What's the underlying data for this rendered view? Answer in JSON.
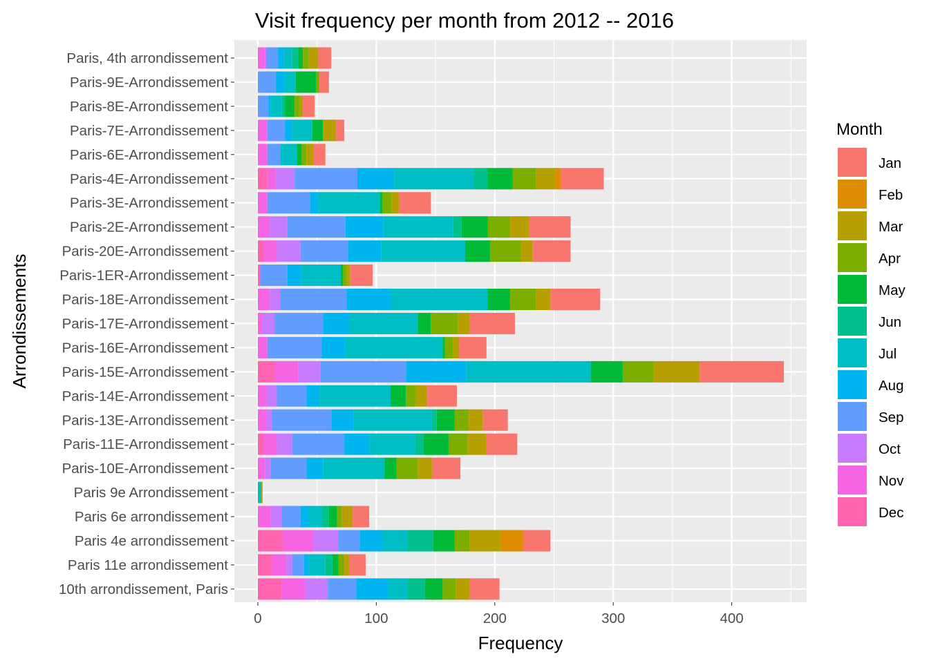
{
  "chart_data": {
    "type": "bar",
    "orientation": "horizontal",
    "stacked": true,
    "title": "Visit frequency per month from 2012 -- 2016",
    "xlabel": "Frequency",
    "ylabel": "Arrondissements",
    "xlim": [
      -20,
      465
    ],
    "xticks": [
      0,
      100,
      200,
      300,
      400
    ],
    "grid": true,
    "legend": {
      "title": "Month",
      "position": "right"
    },
    "categories": [
      "Paris, 4th arrondissement",
      "Paris-9E-Arrondissement",
      "Paris-8E-Arrondissement",
      "Paris-7E-Arrondissement",
      "Paris-6E-Arrondissement",
      "Paris-4E-Arrondissement",
      "Paris-3E-Arrondissement",
      "Paris-2E-Arrondissement",
      "Paris-20E-Arrondissement",
      "Paris-1ER-Arrondissement",
      "Paris-18E-Arrondissement",
      "Paris-17E-Arrondissement",
      "Paris-16E-Arrondissement",
      "Paris-15E-Arrondissement",
      "Paris-14E-Arrondissement",
      "Paris-13E-Arrondissement",
      "Paris-11E-Arrondissement",
      "Paris-10E-Arrondissement",
      "Paris 9e Arrondissement",
      "Paris 6e arrondissement",
      "Paris 4e arrondissement",
      "Paris 11e arrondissement",
      "10th arrondissement, Paris"
    ],
    "stack_order": [
      "Dec",
      "Nov",
      "Oct",
      "Sep",
      "Aug",
      "Jul",
      "Jun",
      "May",
      "Apr",
      "Mar",
      "Feb",
      "Jan"
    ],
    "series": [
      {
        "name": "Jan",
        "color": "#F8766D",
        "values": [
          11,
          8,
          10,
          7,
          10,
          36,
          27,
          35,
          32,
          19,
          42,
          38,
          23,
          71,
          25,
          21,
          26,
          24,
          0,
          14,
          23,
          14,
          25
        ]
      },
      {
        "name": "Feb",
        "color": "#DE8C00",
        "values": [
          0,
          0,
          0,
          0,
          0,
          5,
          0,
          0,
          0,
          0,
          0,
          0,
          0,
          0,
          0,
          0,
          0,
          0,
          0,
          0,
          19,
          0,
          0
        ]
      },
      {
        "name": "Mar",
        "color": "#B79F00",
        "values": [
          8,
          0,
          3,
          11,
          6,
          16,
          6,
          16,
          10,
          3,
          12,
          10,
          5,
          39,
          10,
          12,
          16,
          12,
          1,
          9,
          26,
          4,
          12
        ]
      },
      {
        "name": "Apr",
        "color": "#7CAE00",
        "values": [
          5,
          3,
          4,
          0,
          4,
          20,
          8,
          19,
          26,
          3,
          22,
          23,
          7,
          26,
          8,
          12,
          16,
          18,
          0,
          4,
          13,
          5,
          11
        ]
      },
      {
        "name": "May",
        "color": "#00BA38",
        "values": [
          4,
          17,
          8,
          9,
          4,
          21,
          2,
          22,
          21,
          2,
          19,
          11,
          2,
          27,
          13,
          15,
          21,
          10,
          0,
          7,
          18,
          5,
          15
        ]
      },
      {
        "name": "Jun",
        "color": "#00C08B",
        "values": [
          5,
          0,
          3,
          0,
          0,
          12,
          0,
          7,
          0,
          0,
          0,
          0,
          0,
          0,
          0,
          4,
          7,
          0,
          1,
          6,
          22,
          6,
          15
        ]
      },
      {
        "name": "Jul",
        "color": "#00BFC4",
        "values": [
          7,
          9,
          9,
          17,
          14,
          67,
          52,
          59,
          71,
          33,
          82,
          58,
          82,
          105,
          60,
          66,
          39,
          52,
          2,
          12,
          21,
          14,
          16
        ]
      },
      {
        "name": "Aug",
        "color": "#00B4F0",
        "values": [
          5,
          8,
          2,
          6,
          0,
          31,
          7,
          32,
          28,
          12,
          37,
          22,
          20,
          51,
          11,
          19,
          21,
          14,
          0,
          6,
          19,
          4,
          27
        ]
      },
      {
        "name": "Sep",
        "color": "#619CFF",
        "values": [
          10,
          15,
          9,
          15,
          11,
          53,
          36,
          49,
          40,
          23,
          56,
          41,
          46,
          72,
          25,
          50,
          44,
          30,
          0,
          16,
          18,
          10,
          24
        ]
      },
      {
        "name": "Oct",
        "color": "#C77CFF",
        "values": [
          1,
          0,
          0,
          1,
          0,
          16,
          0,
          15,
          20,
          0,
          9,
          10,
          0,
          19,
          9,
          5,
          13,
          5,
          0,
          9,
          21,
          5,
          19
        ]
      },
      {
        "name": "Nov",
        "color": "#F564E3",
        "values": [
          6,
          0,
          0,
          7,
          8,
          7,
          8,
          10,
          11,
          0,
          10,
          4,
          8,
          20,
          7,
          7,
          11,
          6,
          0,
          11,
          26,
          12,
          20
        ]
      },
      {
        "name": "Dec",
        "color": "#FF64B0",
        "values": [
          0,
          0,
          0,
          0,
          0,
          8,
          0,
          0,
          5,
          2,
          0,
          0,
          0,
          14,
          0,
          0,
          5,
          0,
          0,
          0,
          21,
          12,
          20
        ]
      }
    ]
  }
}
